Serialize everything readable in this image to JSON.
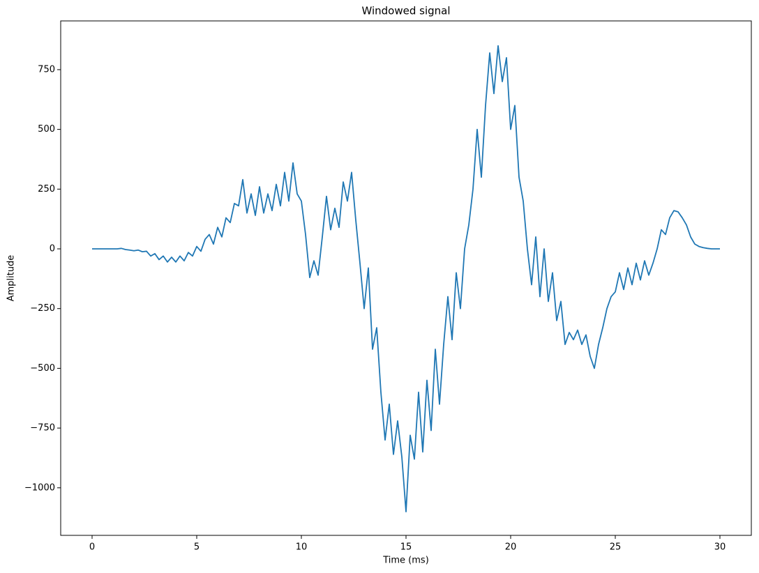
{
  "chart_data": {
    "type": "line",
    "title": "Windowed signal",
    "x_label": "Time (ms)",
    "y_label": "Amplitude",
    "x": [
      0,
      0.2,
      0.4,
      0.6,
      0.8,
      1,
      1.2,
      1.4,
      1.6,
      1.8,
      2,
      2.2,
      2.4,
      2.6,
      2.8,
      3,
      3.2,
      3.4,
      3.6,
      3.8,
      4,
      4.2,
      4.4,
      4.6,
      4.8,
      5,
      5.2,
      5.4,
      5.6,
      5.8,
      6,
      6.2,
      6.4,
      6.6,
      6.8,
      7,
      7.2,
      7.4,
      7.6,
      7.8,
      8,
      8.2,
      8.4,
      8.6,
      8.8,
      9,
      9.2,
      9.4,
      9.6,
      9.8,
      10,
      10.2,
      10.4,
      10.6,
      10.8,
      11,
      11.2,
      11.4,
      11.6,
      11.8,
      12,
      12.2,
      12.4,
      12.6,
      12.8,
      13,
      13.2,
      13.4,
      13.6,
      13.8,
      14,
      14.2,
      14.4,
      14.6,
      14.8,
      15,
      15.2,
      15.4,
      15.6,
      15.8,
      16,
      16.2,
      16.4,
      16.6,
      16.8,
      17,
      17.2,
      17.4,
      17.6,
      17.8,
      18,
      18.2,
      18.4,
      18.6,
      18.8,
      19,
      19.2,
      19.4,
      19.6,
      19.8,
      20,
      20.2,
      20.4,
      20.6,
      20.8,
      21,
      21.2,
      21.4,
      21.6,
      21.8,
      22,
      22.2,
      22.4,
      22.6,
      22.8,
      23,
      23.2,
      23.4,
      23.6,
      23.8,
      24,
      24.2,
      24.4,
      24.6,
      24.8,
      25,
      25.2,
      25.4,
      25.6,
      25.8,
      26,
      26.2,
      26.4,
      26.6,
      26.8,
      27,
      27.2,
      27.4,
      27.6,
      27.8,
      28,
      28.2,
      28.4,
      28.6,
      28.8,
      29,
      29.2,
      29.4,
      29.6,
      29.8,
      30
    ],
    "series": [
      {
        "color": "#1f77b4",
        "values": [
          0,
          0,
          0,
          0,
          0,
          0,
          0,
          2,
          -3,
          -5,
          -8,
          -5,
          -12,
          -10,
          -30,
          -20,
          -45,
          -30,
          -55,
          -35,
          -55,
          -30,
          -50,
          -15,
          -30,
          10,
          -10,
          40,
          60,
          20,
          90,
          50,
          130,
          110,
          190,
          180,
          290,
          150,
          230,
          140,
          260,
          150,
          230,
          160,
          270,
          180,
          320,
          200,
          360,
          230,
          200,
          60,
          -120,
          -50,
          -110,
          50,
          220,
          80,
          170,
          90,
          280,
          200,
          320,
          120,
          -60,
          -250,
          -80,
          -420,
          -330,
          -600,
          -800,
          -650,
          -860,
          -720,
          -870,
          -1100,
          -780,
          -880,
          -600,
          -850,
          -550,
          -760,
          -420,
          -650,
          -400,
          -200,
          -380,
          -100,
          -250,
          0,
          100,
          250,
          500,
          300,
          600,
          820,
          650,
          850,
          700,
          800,
          500,
          600,
          300,
          200,
          0,
          -150,
          50,
          -200,
          0,
          -220,
          -100,
          -300,
          -220,
          -400,
          -350,
          -380,
          -340,
          -400,
          -360,
          -450,
          -500,
          -400,
          -330,
          -250,
          -200,
          -180,
          -100,
          -170,
          -80,
          -150,
          -60,
          -130,
          -50,
          -110,
          -60,
          0,
          80,
          60,
          130,
          160,
          155,
          130,
          100,
          50,
          20,
          10,
          5,
          2,
          0,
          0,
          0
        ]
      }
    ],
    "xlim": [
      -1.5,
      31.5
    ],
    "ylim": [
      -1199,
      954
    ],
    "xticks": [
      0,
      5,
      10,
      15,
      20,
      25,
      30
    ],
    "yticks": [
      {
        "value": -1000,
        "label": "−1000"
      },
      {
        "value": -750,
        "label": "−750"
      },
      {
        "value": -500,
        "label": "−500"
      },
      {
        "value": -250,
        "label": "−250"
      },
      0,
      250,
      500,
      750
    ]
  }
}
